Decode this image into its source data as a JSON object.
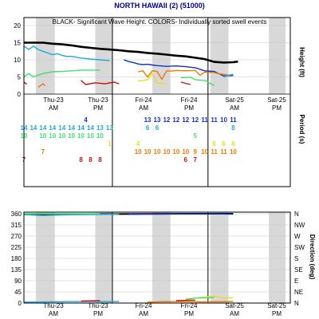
{
  "title": "NORTH HAWAII (2) (51000)",
  "subtitle": "BLACK- Significant Wave Height.  COLORS- Individually sorted swell events",
  "colors": {
    "black": "#000000",
    "blue": "#1030c8",
    "cyan": "#20a8e0",
    "green": "#40e070",
    "yellow": "#e0e020",
    "orange": "#f07800",
    "red": "#d01010",
    "shade": "#d8d8d8"
  },
  "time_labels": [
    {
      "line1": "Thu-23",
      "line2": "AM"
    },
    {
      "line1": "Thu-23",
      "line2": "PM"
    },
    {
      "line1": "Fri-24",
      "line2": "AM"
    },
    {
      "line1": "Fri-24",
      "line2": "PM"
    },
    {
      "line1": "Sat-25",
      "line2": "AM"
    },
    {
      "line1": "Sat-25",
      "line2": "PM"
    }
  ],
  "height_panel": {
    "ylabel": "Height (ft)",
    "yticks": [
      "0",
      "5",
      "10",
      "15",
      "20"
    ],
    "ylim": [
      0,
      20
    ]
  },
  "period_panel": {
    "ylabel": "Period (s)",
    "rows": [
      {
        "color": "#1030c8",
        "entries": [
          {
            "t": 13,
            "v": "4"
          },
          {
            "t": 26,
            "v": "13"
          },
          {
            "t": 28,
            "v": "13"
          },
          {
            "t": 30,
            "v": "12"
          },
          {
            "t": 32,
            "v": "12"
          },
          {
            "t": 34,
            "v": "12"
          },
          {
            "t": 36,
            "v": "12"
          },
          {
            "t": 38,
            "v": "11"
          },
          {
            "t": 40,
            "v": "11"
          },
          {
            "t": 42,
            "v": "10"
          },
          {
            "t": 44,
            "v": "11"
          }
        ]
      },
      {
        "color": "#20a8e0",
        "entries": [
          {
            "t": 0,
            "v": "14"
          },
          {
            "t": 2,
            "v": "14"
          },
          {
            "t": 4,
            "v": "14"
          },
          {
            "t": 6,
            "v": "14"
          },
          {
            "t": 8,
            "v": "14"
          },
          {
            "t": 10,
            "v": "14"
          },
          {
            "t": 12,
            "v": "14"
          },
          {
            "t": 14,
            "v": "14"
          },
          {
            "t": 16,
            "v": "13"
          },
          {
            "t": 18,
            "v": "13"
          },
          {
            "t": 26,
            "v": "6"
          },
          {
            "t": 28,
            "v": "6"
          },
          {
            "t": 44,
            "v": "8"
          }
        ]
      },
      {
        "color": "#40e070",
        "entries": [
          {
            "t": 0,
            "v": "10"
          },
          {
            "t": 4,
            "v": "10"
          },
          {
            "t": 6,
            "v": "10"
          },
          {
            "t": 8,
            "v": "10"
          },
          {
            "t": 10,
            "v": "10"
          },
          {
            "t": 12,
            "v": "10"
          },
          {
            "t": 14,
            "v": "10"
          },
          {
            "t": 16,
            "v": "10"
          },
          {
            "t": 36,
            "v": "5"
          }
        ]
      },
      {
        "color": "#e0e020",
        "entries": [
          {
            "t": 18,
            "v": "1"
          },
          {
            "t": 24,
            "v": "4"
          },
          {
            "t": 40,
            "v": "6"
          },
          {
            "t": 42,
            "v": "6"
          },
          {
            "t": 44,
            "v": "6"
          }
        ]
      },
      {
        "color": "#f07800",
        "entries": [
          {
            "t": 4,
            "v": "7"
          },
          {
            "t": 24,
            "v": "10"
          },
          {
            "t": 26,
            "v": "10"
          },
          {
            "t": 28,
            "v": "10"
          },
          {
            "t": 30,
            "v": "10"
          },
          {
            "t": 32,
            "v": "10"
          },
          {
            "t": 34,
            "v": "10"
          },
          {
            "t": 36,
            "v": "9"
          },
          {
            "t": 38,
            "v": "10"
          },
          {
            "t": 40,
            "v": "11"
          },
          {
            "t": 42,
            "v": "11"
          },
          {
            "t": 44,
            "v": "10"
          }
        ]
      },
      {
        "color": "#d01010",
        "entries": [
          {
            "t": 0,
            "v": "7"
          },
          {
            "t": 12,
            "v": "8"
          },
          {
            "t": 14,
            "v": "8"
          },
          {
            "t": 16,
            "v": "8"
          },
          {
            "t": 34,
            "v": "6"
          },
          {
            "t": 36,
            "v": "7"
          }
        ]
      }
    ]
  },
  "direction_panel": {
    "ylabel": "Direction (deg)",
    "yticks": [
      "0",
      "45",
      "90",
      "135",
      "180",
      "225",
      "270",
      "315",
      "360"
    ],
    "compass": [
      "N",
      "NE",
      "E",
      "SE",
      "S",
      "SW",
      "W",
      "NW",
      "N"
    ],
    "ylim": [
      0,
      360
    ]
  },
  "chart_data": {
    "type": "line",
    "title": "NORTH HAWAII (2) (51000)",
    "subtitle": "BLACK- Significant Wave Height.  COLORS- Individually sorted swell events",
    "x_unit": "hours",
    "x_range": [
      0,
      56
    ],
    "height_series": [
      {
        "color": "#000000",
        "points": [
          [
            0,
            15
          ],
          [
            2,
            15
          ],
          [
            4,
            15
          ],
          [
            6,
            14.7
          ],
          [
            8,
            14.5
          ],
          [
            10,
            14.2
          ],
          [
            12,
            13.8
          ],
          [
            14,
            13.5
          ],
          [
            16,
            13.2
          ],
          [
            18,
            13
          ],
          [
            20,
            12.8
          ],
          [
            22,
            12.5
          ],
          [
            24,
            12.3
          ],
          [
            26,
            12
          ],
          [
            28,
            11.8
          ],
          [
            30,
            11.5
          ],
          [
            32,
            11.2
          ],
          [
            34,
            11
          ],
          [
            36,
            10.6
          ],
          [
            38,
            10.2
          ],
          [
            40,
            9.4
          ],
          [
            42,
            9.2
          ],
          [
            44,
            9.3
          ],
          [
            45,
            9.5
          ]
        ]
      },
      {
        "color": "#20a8e0",
        "points": [
          [
            0,
            14
          ],
          [
            1,
            13
          ],
          [
            2,
            14
          ],
          [
            3,
            13
          ],
          [
            4,
            12.5
          ],
          [
            5,
            12
          ],
          [
            6,
            11.5
          ],
          [
            7,
            11.8
          ],
          [
            8,
            11.3
          ],
          [
            9,
            11
          ],
          [
            10,
            11
          ],
          [
            12,
            10.5
          ],
          [
            14,
            10.2
          ],
          [
            16,
            10
          ],
          [
            18,
            9.8
          ]
        ]
      },
      {
        "color": "#1030c8",
        "points": [
          [
            21,
            10
          ],
          [
            22,
            9.5
          ],
          [
            23,
            9.2
          ],
          [
            24,
            8.8
          ],
          [
            25,
            8.6
          ],
          [
            26,
            8.7
          ],
          [
            27,
            8.5
          ],
          [
            28,
            8.3
          ],
          [
            29,
            8.2
          ],
          [
            30,
            8.1
          ],
          [
            32,
            8.2
          ],
          [
            34,
            8
          ],
          [
            36,
            7.7
          ],
          [
            38,
            6.8
          ],
          [
            40,
            6.6
          ],
          [
            42,
            5.3
          ],
          [
            44,
            5.4
          ]
        ]
      },
      {
        "color": "#40e070",
        "points": [
          [
            0,
            5
          ],
          [
            1,
            6
          ],
          [
            2,
            5
          ],
          [
            3,
            5.5
          ],
          [
            4,
            6
          ],
          [
            6,
            6.5
          ],
          [
            8,
            6.6
          ],
          [
            10,
            6.8
          ],
          [
            12,
            7
          ],
          [
            14,
            7
          ],
          [
            16,
            7
          ]
        ]
      },
      {
        "color": "#f07800",
        "points": [
          [
            24,
            6.5
          ],
          [
            25,
            6.8
          ],
          [
            26,
            5
          ],
          [
            27,
            6.8
          ],
          [
            28,
            6.6
          ],
          [
            29,
            4.3
          ],
          [
            30,
            6.8
          ],
          [
            31,
            6.7
          ],
          [
            32,
            6.9
          ],
          [
            34,
            6.8
          ],
          [
            36,
            6.9
          ],
          [
            37,
            5.5
          ],
          [
            38,
            6.4
          ],
          [
            40,
            6.3
          ],
          [
            41,
            5.9
          ],
          [
            42,
            5.8
          ],
          [
            43,
            5.5
          ],
          [
            44,
            5.8
          ]
        ]
      },
      {
        "color": "#e0e020",
        "points": [
          [
            24,
            3.8
          ],
          [
            26,
            4.2
          ],
          [
            27,
            6
          ],
          [
            28,
            3.2
          ],
          [
            30,
            3
          ]
        ]
      },
      {
        "color": "#40e070",
        "points": [
          [
            33,
            4.8
          ],
          [
            35,
            4.9
          ],
          [
            36,
            4.2
          ],
          [
            38,
            4
          ],
          [
            40,
            2.5
          ]
        ]
      },
      {
        "color": "#20a8e0",
        "points": [
          [
            42,
            5
          ],
          [
            44,
            5.8
          ]
        ]
      },
      {
        "color": "#f07800",
        "points": [
          [
            3,
            2
          ],
          [
            4,
            3
          ],
          [
            4.5,
            2.5
          ]
        ]
      },
      {
        "color": "#d01010",
        "points": [
          [
            12,
            4
          ],
          [
            13,
            2.8
          ],
          [
            15,
            3.3
          ],
          [
            17,
            3
          ],
          [
            19,
            3.5
          ],
          [
            20,
            3
          ]
        ]
      },
      {
        "color": "#d01010",
        "points": [
          [
            0,
            3.5
          ],
          [
            0.6,
            2.9
          ]
        ]
      },
      {
        "color": "#d01010",
        "points": [
          [
            33,
            3.5
          ],
          [
            35,
            2.8
          ]
        ]
      }
    ],
    "direction_series": [
      {
        "color": "#000000",
        "points": [
          [
            0,
            358
          ],
          [
            12,
            358
          ],
          [
            24,
            359
          ],
          [
            36,
            360
          ],
          [
            44,
            360
          ]
        ]
      },
      {
        "color": "#20a8e0",
        "points": [
          [
            0,
            356
          ],
          [
            4,
            353
          ],
          [
            8,
            355
          ],
          [
            12,
            356
          ],
          [
            16,
            357
          ],
          [
            20,
            358
          ]
        ]
      },
      {
        "color": "#40e070",
        "points": [
          [
            0,
            360
          ],
          [
            8,
            360
          ],
          [
            16,
            360
          ]
        ]
      },
      {
        "color": "#1030c8",
        "points": [
          [
            22,
            358
          ],
          [
            30,
            359
          ],
          [
            40,
            360
          ],
          [
            44,
            358
          ]
        ]
      },
      {
        "color": "#e0e020",
        "points": [
          [
            34,
            16
          ],
          [
            38,
            24
          ],
          [
            40,
            28
          ],
          [
            42,
            20
          ],
          [
            44,
            22
          ]
        ]
      },
      {
        "color": "#40e070",
        "points": [
          [
            34,
            14
          ],
          [
            36,
            20
          ],
          [
            40,
            22
          ]
        ]
      },
      {
        "color": "#20a8e0",
        "points": [
          [
            0,
            4
          ],
          [
            10,
            6
          ],
          [
            20,
            6
          ]
        ]
      },
      {
        "color": "#f07800",
        "points": [
          [
            26,
            4
          ],
          [
            30,
            6
          ],
          [
            38,
            5
          ],
          [
            44,
            6
          ]
        ]
      },
      {
        "color": "#d01010",
        "points": [
          [
            12,
            8
          ],
          [
            16,
            10
          ]
        ]
      },
      {
        "color": "#d01010",
        "points": [
          [
            32,
            10
          ],
          [
            36,
            12
          ]
        ]
      }
    ]
  }
}
